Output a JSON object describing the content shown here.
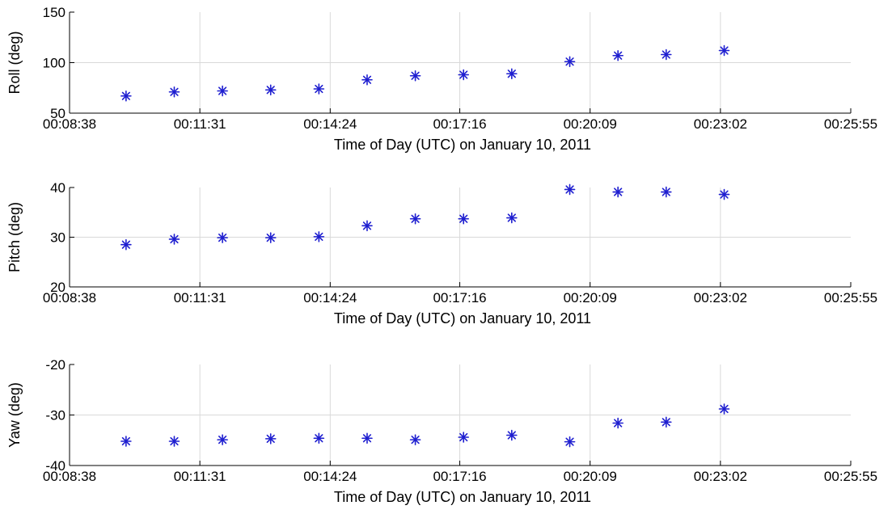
{
  "chart_data": [
    {
      "type": "scatter",
      "xlabel": "Time of Day (UTC) on January 10, 2011",
      "ylabel": "Roll (deg)",
      "xlim": [
        "00:08:38",
        "00:25:55"
      ],
      "xticks": [
        "00:08:38",
        "00:11:31",
        "00:14:24",
        "00:17:16",
        "00:20:09",
        "00:23:02",
        "00:25:55"
      ],
      "ylim": [
        50,
        150
      ],
      "yticks": [
        50,
        100,
        150
      ],
      "grid": true,
      "marker": "asterisk",
      "color": "#1f1fd0",
      "x": [
        "00:09:53",
        "00:10:57",
        "00:12:01",
        "00:13:05",
        "00:14:09",
        "00:15:13",
        "00:16:17",
        "00:17:21",
        "00:18:25",
        "00:19:42",
        "00:20:46",
        "00:21:50",
        "00:23:07"
      ],
      "y": [
        67,
        71,
        72,
        73,
        74,
        83,
        87,
        88,
        89,
        101,
        107,
        108,
        112
      ]
    },
    {
      "type": "scatter",
      "xlabel": "Time of Day (UTC) on January 10, 2011",
      "ylabel": "Pitch (deg)",
      "xlim": [
        "00:08:38",
        "00:25:55"
      ],
      "xticks": [
        "00:08:38",
        "00:11:31",
        "00:14:24",
        "00:17:16",
        "00:20:09",
        "00:23:02",
        "00:25:55"
      ],
      "ylim": [
        20,
        40
      ],
      "yticks": [
        20,
        30,
        40
      ],
      "grid": true,
      "marker": "asterisk",
      "color": "#1f1fd0",
      "x": [
        "00:09:53",
        "00:10:57",
        "00:12:01",
        "00:13:05",
        "00:14:09",
        "00:15:13",
        "00:16:17",
        "00:17:21",
        "00:18:25",
        "00:19:42",
        "00:20:46",
        "00:21:50",
        "00:23:07"
      ],
      "y": [
        28.5,
        29.6,
        29.9,
        29.9,
        30.1,
        32.3,
        33.7,
        33.7,
        33.9,
        39.6,
        39.1,
        39.1,
        38.6
      ]
    },
    {
      "type": "scatter",
      "xlabel": "Time of Day (UTC) on January 10, 2011",
      "ylabel": "Yaw (deg)",
      "xlim": [
        "00:08:38",
        "00:25:55"
      ],
      "xticks": [
        "00:08:38",
        "00:11:31",
        "00:14:24",
        "00:17:16",
        "00:20:09",
        "00:23:02",
        "00:25:55"
      ],
      "ylim": [
        -40,
        -20
      ],
      "yticks": [
        -40,
        -30,
        -20
      ],
      "grid": true,
      "marker": "asterisk",
      "color": "#1f1fd0",
      "x": [
        "00:09:53",
        "00:10:57",
        "00:12:01",
        "00:13:05",
        "00:14:09",
        "00:15:13",
        "00:16:17",
        "00:17:21",
        "00:18:25",
        "00:19:42",
        "00:20:46",
        "00:21:50",
        "00:23:07"
      ],
      "y": [
        -35.2,
        -35.2,
        -34.9,
        -34.7,
        -34.6,
        -34.6,
        -34.9,
        -34.4,
        -34.0,
        -35.3,
        -31.6,
        -31.4,
        -28.8
      ]
    }
  ]
}
